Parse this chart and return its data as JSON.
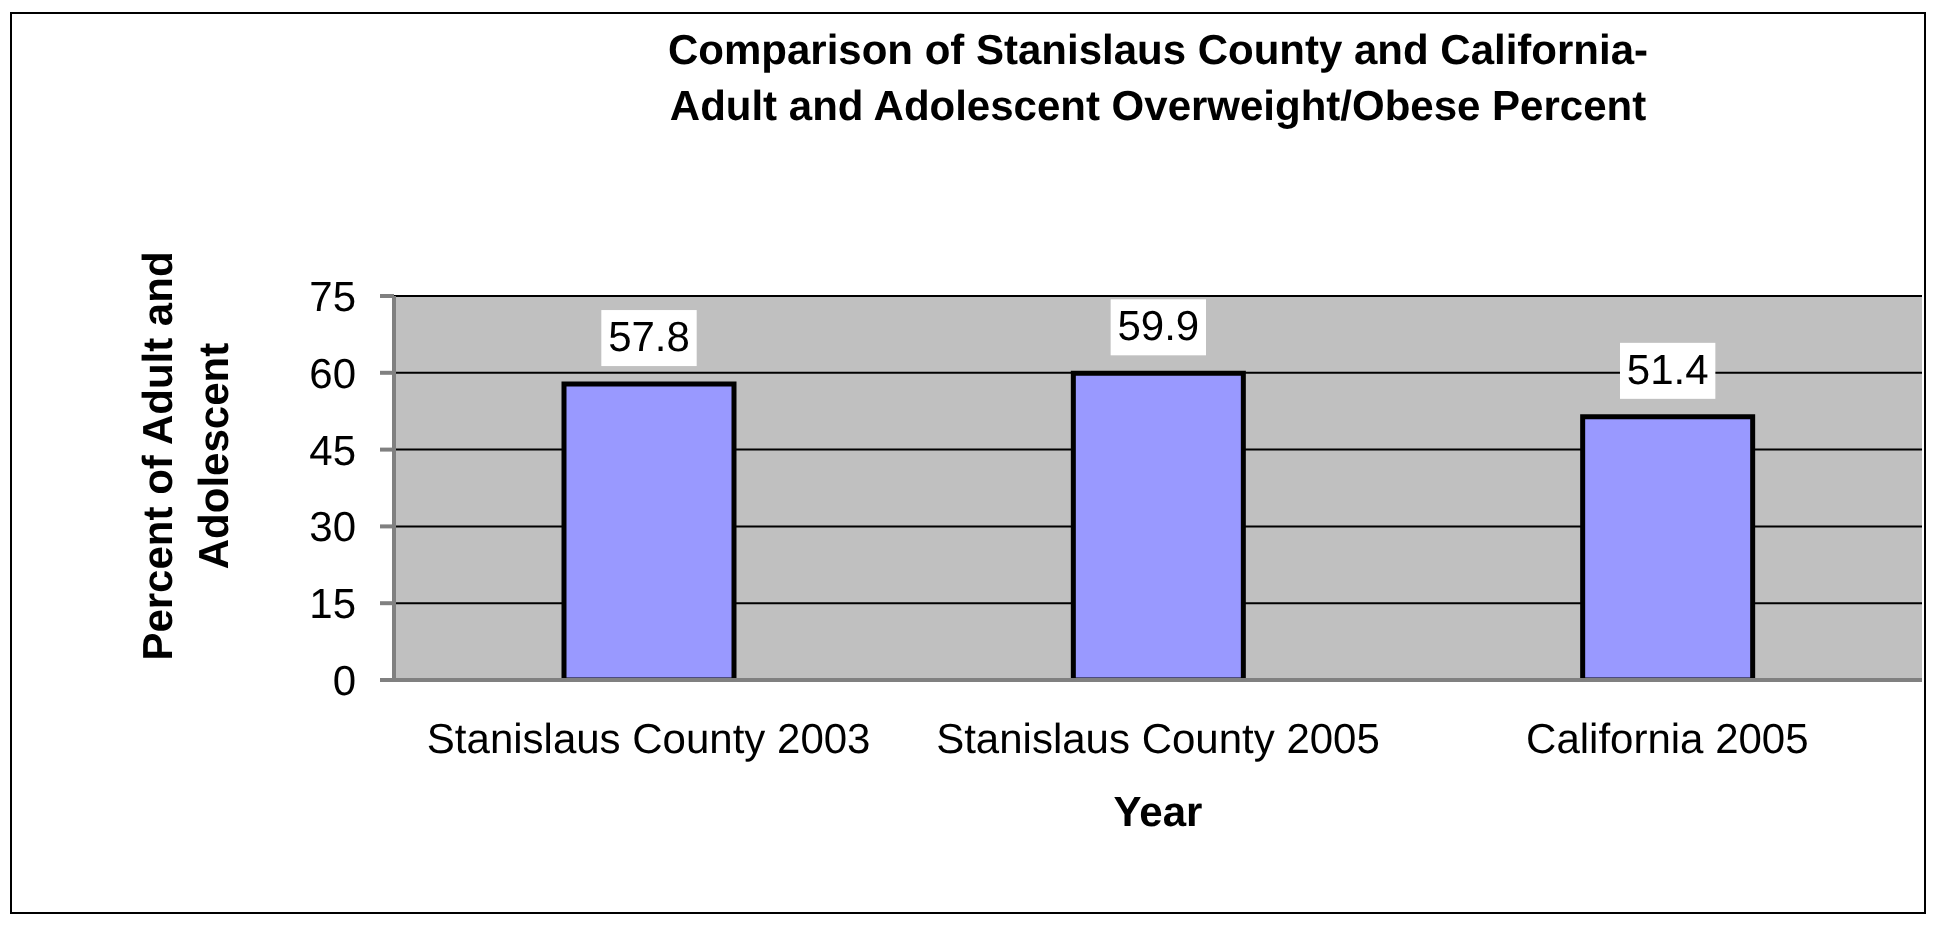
{
  "chart_data": {
    "type": "bar",
    "title": "Comparison of Stanislaus County and California-Adult and Adolescent Overweight/Obese Percent",
    "xlabel": "Year",
    "ylabel": "Percent of Adult and Adolescent",
    "categories": [
      "Stanislaus County 2003",
      "Stanislaus County 2005",
      "California 2005"
    ],
    "values": [
      57.8,
      59.9,
      51.4
    ],
    "color": "#9999ff",
    "ylim": [
      0,
      75
    ],
    "yticks": [
      0,
      15,
      30,
      45,
      60,
      75
    ],
    "grid": "y",
    "data_labels": true
  }
}
